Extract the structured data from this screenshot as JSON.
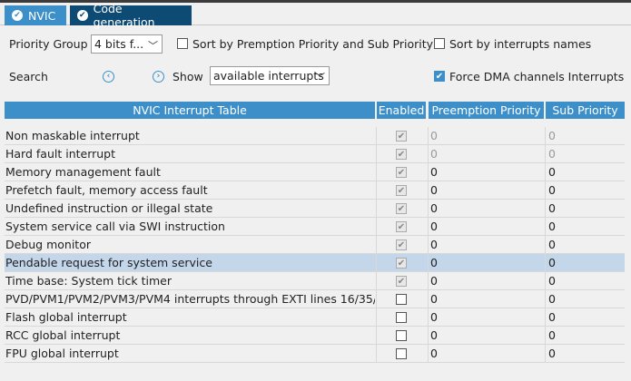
{
  "tabs": [
    {
      "label": "NVIC",
      "icon": "check-circle-icon"
    },
    {
      "label": "Code generation",
      "icon": "check-circle-icon"
    }
  ],
  "controls": {
    "priority_group_label": "Priority Group",
    "priority_group_value": "4 bits f...",
    "sort_priority_label": "Sort by Premption Priority and Sub Priority",
    "sort_names_label": "Sort by interrupts names",
    "search_label": "Search",
    "show_label": "Show",
    "show_value": "available interrupts",
    "force_dma_label": "Force DMA channels Interrupts",
    "force_dma_checked": true
  },
  "table": {
    "headers": [
      "NVIC Interrupt Table",
      "Enabled",
      "Preemption Priority",
      "Sub Priority"
    ],
    "rows": [
      {
        "name": "Non maskable interrupt",
        "enabled": true,
        "locked": true,
        "preemption": "0",
        "sub": "0",
        "disabled_values": true
      },
      {
        "name": "Hard fault interrupt",
        "enabled": true,
        "locked": true,
        "preemption": "0",
        "sub": "0",
        "disabled_values": true
      },
      {
        "name": "Memory management fault",
        "enabled": true,
        "locked": true,
        "preemption": "0",
        "sub": "0"
      },
      {
        "name": "Prefetch fault, memory access fault",
        "enabled": true,
        "locked": true,
        "preemption": "0",
        "sub": "0"
      },
      {
        "name": "Undefined instruction or illegal state",
        "enabled": true,
        "locked": true,
        "preemption": "0",
        "sub": "0"
      },
      {
        "name": "System service call via SWI instruction",
        "enabled": true,
        "locked": true,
        "preemption": "0",
        "sub": "0"
      },
      {
        "name": "Debug monitor",
        "enabled": true,
        "locked": true,
        "preemption": "0",
        "sub": "0"
      },
      {
        "name": "Pendable request for system service",
        "enabled": true,
        "locked": true,
        "preemption": "0",
        "sub": "0",
        "selected": true
      },
      {
        "name": "Time base: System tick timer",
        "enabled": true,
        "locked": true,
        "preemption": "0",
        "sub": "0"
      },
      {
        "name": "PVD/PVM1/PVM2/PVM3/PVM4 interrupts through EXTI lines 16/35/...",
        "enabled": false,
        "preemption": "0",
        "sub": "0"
      },
      {
        "name": "Flash global interrupt",
        "enabled": false,
        "preemption": "0",
        "sub": "0"
      },
      {
        "name": "RCC global interrupt",
        "enabled": false,
        "preemption": "0",
        "sub": "0"
      },
      {
        "name": "FPU global interrupt",
        "enabled": false,
        "preemption": "0",
        "sub": "0"
      }
    ]
  },
  "colors": {
    "accent": "#3d8fc9",
    "tab_dark": "#0d4a74",
    "selection": "#c4d6ea"
  }
}
